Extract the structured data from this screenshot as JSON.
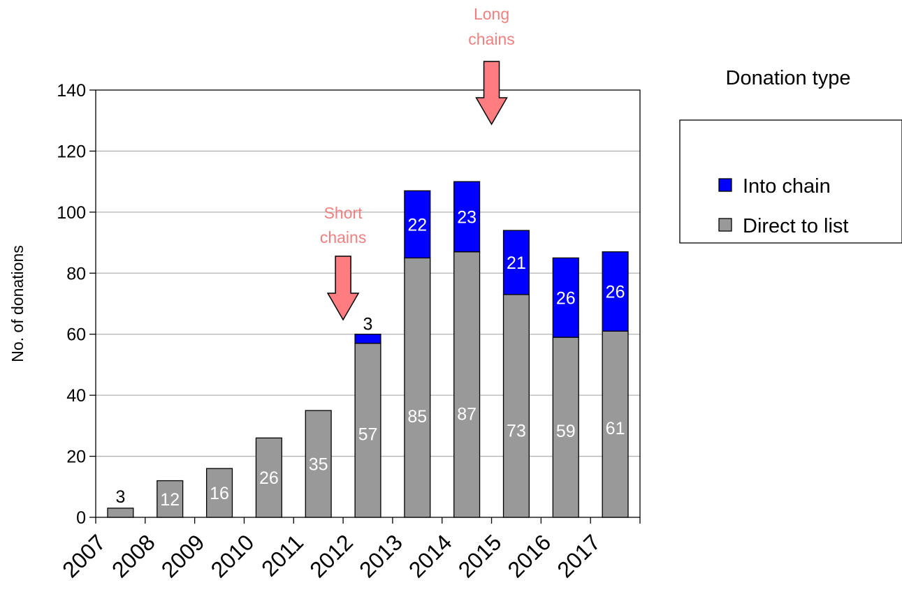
{
  "chart_data": {
    "type": "bar",
    "stacked": true,
    "categories": [
      "2007",
      "2008",
      "2009",
      "2010",
      "2011",
      "2012",
      "2013",
      "2014",
      "2015",
      "2016",
      "2017"
    ],
    "series": [
      {
        "name": "Direct to list",
        "values": [
          3,
          12,
          16,
          26,
          35,
          57,
          85,
          87,
          73,
          59,
          61
        ],
        "color": "#999999"
      },
      {
        "name": "Into chain",
        "values": [
          0,
          0,
          0,
          0,
          0,
          3,
          22,
          23,
          21,
          26,
          26
        ],
        "color": "#0000ff"
      }
    ],
    "ylabel": "No. of donations",
    "ylim": [
      0,
      140
    ],
    "yticks": [
      0,
      20,
      40,
      60,
      80,
      100,
      120,
      140
    ],
    "grid": true,
    "legend": {
      "title": "Donation type",
      "position": "right"
    },
    "annotations": [
      {
        "line1": "Short",
        "line2": "chains",
        "at_year": "2012",
        "color": "#f08080"
      },
      {
        "line1": "Long",
        "line2": "chains",
        "at_year": "2015",
        "color": "#f08080"
      }
    ]
  }
}
